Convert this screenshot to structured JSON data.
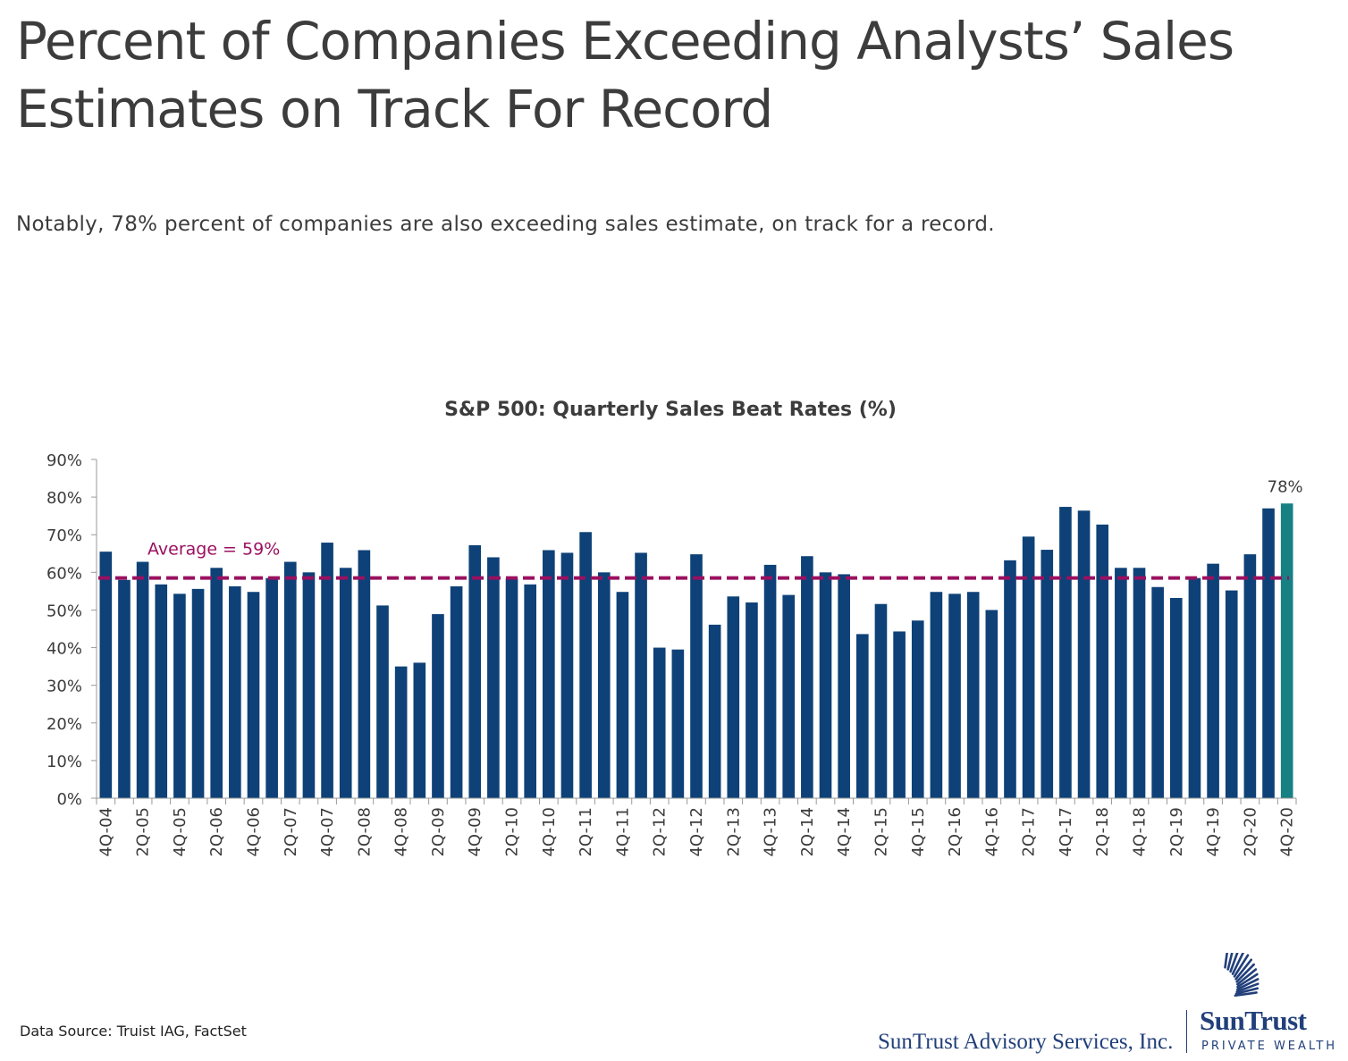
{
  "title": "Percent of Companies Exceeding Analysts’ Sales Estimates on Track For Record",
  "subtitle": "Notably, 78% percent of companies are also exceeding sales estimate, on track for a record.",
  "source": "Data Source: Truist IAG, FactSet",
  "footer": {
    "company": "SunTrust Advisory Services, Inc.",
    "brand": "SunTrust",
    "brand_sub": "PRIVATE WEALTH",
    "logo_icon": "sunrise-rays-icon"
  },
  "colors": {
    "bar": "#0e4177",
    "highlight": "#168083",
    "average_line": "#9b1060",
    "text": "#3c3c3c"
  },
  "chart_data": {
    "type": "bar",
    "title": "S&P 500: Quarterly Sales Beat Rates (%)",
    "ylim": [
      0,
      90
    ],
    "yticks": [
      "0%",
      "10%",
      "20%",
      "30%",
      "40%",
      "50%",
      "60%",
      "70%",
      "80%",
      "90%"
    ],
    "categories": [
      "4Q-04",
      "1Q-05",
      "2Q-05",
      "3Q-05",
      "4Q-05",
      "1Q-06",
      "2Q-06",
      "3Q-06",
      "4Q-06",
      "1Q-07",
      "2Q-07",
      "3Q-07",
      "4Q-07",
      "1Q-08",
      "2Q-08",
      "3Q-08",
      "4Q-08",
      "1Q-09",
      "2Q-09",
      "3Q-09",
      "4Q-09",
      "1Q-10",
      "2Q-10",
      "3Q-10",
      "4Q-10",
      "1Q-11",
      "2Q-11",
      "3Q-11",
      "4Q-11",
      "1Q-12",
      "2Q-12",
      "3Q-12",
      "4Q-12",
      "1Q-13",
      "2Q-13",
      "3Q-13",
      "4Q-13",
      "1Q-14",
      "2Q-14",
      "3Q-14",
      "4Q-14",
      "1Q-15",
      "2Q-15",
      "3Q-15",
      "4Q-15",
      "1Q-16",
      "2Q-16",
      "3Q-16",
      "4Q-16",
      "1Q-17",
      "2Q-17",
      "3Q-17",
      "4Q-17",
      "1Q-18",
      "2Q-18",
      "3Q-18",
      "4Q-18",
      "1Q-19",
      "2Q-19",
      "3Q-19",
      "4Q-19",
      "1Q-20",
      "2Q-20",
      "3Q-20",
      "4Q-20"
    ],
    "visible_tick_labels": [
      "4Q-04",
      "2Q-05",
      "4Q-05",
      "2Q-06",
      "4Q-06",
      "2Q-07",
      "4Q-07",
      "2Q-08",
      "4Q-08",
      "2Q-09",
      "4Q-09",
      "2Q-10",
      "4Q-10",
      "2Q-11",
      "4Q-11",
      "2Q-12",
      "4Q-12",
      "2Q-13",
      "4Q-13",
      "2Q-14",
      "4Q-14",
      "2Q-15",
      "4Q-15",
      "2Q-16",
      "4Q-16",
      "2Q-17",
      "4Q-17",
      "2Q-18",
      "4Q-18",
      "2Q-19",
      "4Q-19",
      "2Q-20",
      "4Q-20"
    ],
    "values": [
      65.5,
      58,
      62.8,
      56.8,
      54.3,
      55.6,
      61.2,
      56.3,
      54.8,
      58.5,
      62.8,
      60,
      67.9,
      61.2,
      65.9,
      51.2,
      35,
      36,
      48.9,
      56.3,
      67.2,
      64,
      58.4,
      56.8,
      65.9,
      65.2,
      70.7,
      60,
      54.8,
      65.2,
      40,
      39.5,
      64.8,
      46.1,
      53.6,
      52,
      62,
      54,
      64.3,
      60,
      59.5,
      43.6,
      51.6,
      44.3,
      47.2,
      54.8,
      54.3,
      54.8,
      50,
      63.2,
      69.5,
      66,
      77.4,
      76.4,
      72.7,
      61.2,
      61.2,
      56.1,
      53.2,
      58.5,
      62.3,
      55.2,
      64.8,
      77,
      78.3
    ],
    "highlight_index": 64,
    "highlight_label": "78%",
    "average": 58.5,
    "average_label": "Average = 59%"
  }
}
